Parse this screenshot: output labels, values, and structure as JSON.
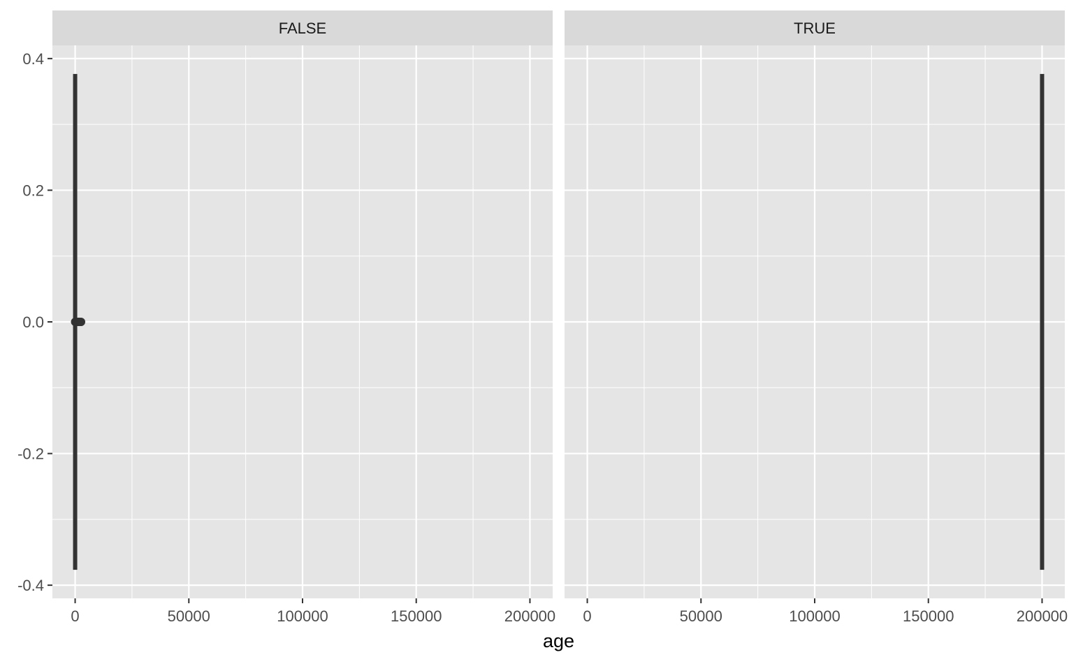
{
  "chart_data": {
    "type": "boxplot",
    "facet_var": "",
    "facets": [
      {
        "label": "FALSE",
        "box": {
          "x_min": 0,
          "x_q1": 0,
          "x_median": 0,
          "x_q3": 0,
          "x_max": 0,
          "y_low": -0.375,
          "y_high": 0.375
        },
        "outliers": [
          {
            "x": 0,
            "y": 0
          },
          {
            "x": 200,
            "y": 0
          },
          {
            "x": 400,
            "y": 0
          },
          {
            "x": 600,
            "y": 0
          },
          {
            "x": 800,
            "y": 0
          },
          {
            "x": 1000,
            "y": 0
          },
          {
            "x": 1200,
            "y": 0
          },
          {
            "x": 1400,
            "y": 0
          },
          {
            "x": 1600,
            "y": 0
          },
          {
            "x": 1800,
            "y": 0
          },
          {
            "x": 2000,
            "y": 0
          },
          {
            "x": 2200,
            "y": 0
          },
          {
            "x": 2400,
            "y": 0
          },
          {
            "x": 2600,
            "y": 0
          }
        ]
      },
      {
        "label": "TRUE",
        "box": {
          "x_min": 200000,
          "x_q1": 200000,
          "x_median": 200000,
          "x_q3": 200000,
          "x_max": 200000,
          "y_low": -0.375,
          "y_high": 0.375
        },
        "outliers": []
      }
    ],
    "xlabel": "age",
    "ylabel": "",
    "xlim": [
      -10000,
      210000
    ],
    "ylim": [
      -0.42,
      0.42
    ],
    "x_ticks": [
      0,
      50000,
      100000,
      150000,
      200000
    ],
    "x_tick_labels": [
      "0",
      "50000",
      "100000",
      "150000",
      "200000"
    ],
    "x_minor_ticks": [
      25000,
      75000,
      125000,
      175000
    ],
    "y_ticks": [
      -0.4,
      -0.2,
      0.0,
      0.2,
      0.4
    ],
    "y_tick_labels": [
      "-0.4",
      "-0.2",
      "0.0",
      "0.2",
      "0.4"
    ],
    "y_minor_ticks": [
      -0.3,
      -0.1,
      0.1,
      0.3
    ],
    "grid": true,
    "legend": "none",
    "colors": {
      "panel_bg": "#e5e5e5",
      "strip_bg": "#d9d9d9",
      "grid": "#ffffff",
      "mark": "#333333"
    }
  }
}
